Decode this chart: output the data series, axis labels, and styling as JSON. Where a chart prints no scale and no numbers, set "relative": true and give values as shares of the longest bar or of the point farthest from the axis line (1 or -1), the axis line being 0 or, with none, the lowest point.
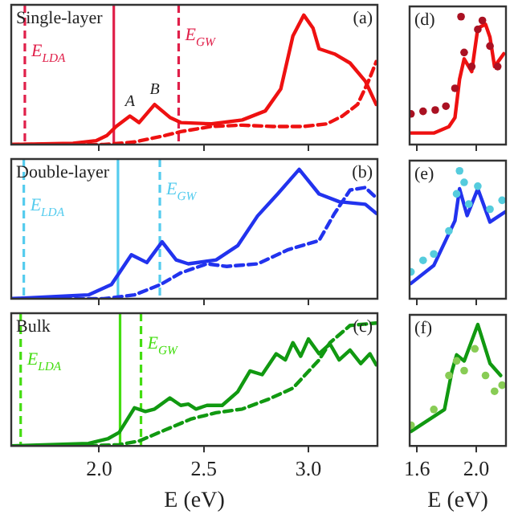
{
  "chart_data": [
    {
      "type": "line",
      "relative": true,
      "xlim": [
        1.58,
        3.33
      ],
      "xticks": [
        {
          "value": 2,
          "label": null
        },
        {
          "value": 2.5,
          "label": null
        },
        {
          "value": 3,
          "label": null
        }
      ],
      "tick_labels": false,
      "grid": false,
      "legend": false,
      "annotations": [
        "Single-layer",
        "(a)",
        {
          "text": "A",
          "x": 2.147,
          "y": 0.22
        },
        {
          "text": "B",
          "x": 2.265,
          "y": 0.31
        }
      ],
      "ref_lines": [
        {
          "axis": "x",
          "value": 1.645,
          "label": "E$_{LDA}$",
          "color": "#e0204a",
          "line_style": "dashed"
        },
        {
          "axis": "x",
          "value": 2.07,
          "label": null,
          "color": "#e0204a",
          "line_style": "solid"
        },
        {
          "axis": "x",
          "value": 2.38,
          "label": "E$_{GW}$",
          "color": "#e0204a",
          "line_style": "dashed"
        }
      ],
      "series": [
        {
          "color": "#ee1111",
          "line_style": "solid",
          "marker": "none",
          "x": [
            1.58,
            1.875,
            1.985,
            2.037,
            2.081,
            2.147,
            2.191,
            2.265,
            2.338,
            2.39,
            2.537,
            2.684,
            2.794,
            2.868,
            2.926,
            2.978,
            3.022,
            3.051,
            3.125,
            3.199,
            3.272,
            3.324
          ],
          "values": [
            0,
            0.01,
            0.03,
            0.07,
            0.14,
            0.22,
            0.17,
            0.31,
            0.21,
            0.17,
            0.16,
            0.19,
            0.26,
            0.43,
            0.84,
            1,
            0.9,
            0.74,
            0.7,
            0.63,
            0.49,
            0.31
          ]
        },
        {
          "color": "#ee1111",
          "line_style": "dashed",
          "marker": "none",
          "x": [
            1.58,
            2.022,
            2.169,
            2.316,
            2.39,
            2.537,
            2.684,
            2.831,
            2.978,
            3.088,
            3.162,
            3.235,
            3.287,
            3.324
          ],
          "values": [
            0,
            0,
            0.02,
            0.07,
            0.1,
            0.14,
            0.15,
            0.14,
            0.14,
            0.16,
            0.22,
            0.31,
            0.49,
            0.64
          ]
        }
      ]
    },
    {
      "type": "line",
      "relative": true,
      "xlim": [
        1.58,
        3.33
      ],
      "xticks": [
        {
          "value": 2,
          "label": null
        },
        {
          "value": 2.5,
          "label": null
        },
        {
          "value": 3,
          "label": null
        }
      ],
      "tick_labels": false,
      "grid": false,
      "legend": false,
      "annotations": [
        "Double-layer",
        "(b)"
      ],
      "ref_lines": [
        {
          "axis": "x",
          "value": 1.64,
          "label": "E$_{LDA}$",
          "color": "#55ccee",
          "line_style": "dashed"
        },
        {
          "axis": "x",
          "value": 2.09,
          "label": null,
          "color": "#55ccee",
          "line_style": "solid"
        },
        {
          "axis": "x",
          "value": 2.29,
          "label": "E$_{GW}$",
          "color": "#55ccee",
          "line_style": "dashed"
        }
      ],
      "series": [
        {
          "color": "#2233ee",
          "line_style": "solid",
          "marker": "none",
          "x": [
            1.58,
            1.949,
            2.059,
            2.154,
            2.228,
            2.301,
            2.368,
            2.426,
            2.559,
            2.662,
            2.757,
            2.853,
            2.956,
            3.051,
            3.147,
            3.272,
            3.324
          ],
          "values": [
            0,
            0.03,
            0.11,
            0.34,
            0.28,
            0.44,
            0.3,
            0.27,
            0.3,
            0.41,
            0.64,
            0.81,
            1,
            0.81,
            0.75,
            0.73,
            0.66
          ]
        },
        {
          "color": "#2233ee",
          "line_style": "dashed",
          "marker": "none",
          "x": [
            1.58,
            2.022,
            2.169,
            2.294,
            2.39,
            2.515,
            2.61,
            2.757,
            2.904,
            3.051,
            3.125,
            3.199,
            3.272,
            3.324
          ],
          "values": [
            0,
            0,
            0.03,
            0.11,
            0.2,
            0.27,
            0.25,
            0.27,
            0.38,
            0.45,
            0.66,
            0.84,
            0.86,
            0.78
          ]
        }
      ]
    },
    {
      "type": "line",
      "relative": true,
      "xlim": [
        1.58,
        3.33
      ],
      "xticks": [
        {
          "value": 2,
          "label": "2.0"
        },
        {
          "value": 2.5,
          "label": "2.5"
        },
        {
          "value": 3,
          "label": "3.0"
        }
      ],
      "tick_labels": "x",
      "grid": false,
      "legend": false,
      "xlabel": "E (eV)",
      "annotations": [
        "Bulk",
        "(c)"
      ],
      "ref_lines": [
        {
          "axis": "x",
          "value": 1.625,
          "label": "E$_{LDA}$",
          "color": "#44dd11",
          "line_style": "dashed"
        },
        {
          "axis": "x",
          "value": 2.1,
          "label": null,
          "color": "#44dd11",
          "line_style": "solid"
        },
        {
          "axis": "x",
          "value": 2.2,
          "label": "E$_{GW}$",
          "color": "#44dd11",
          "line_style": "dashed"
        }
      ],
      "series": [
        {
          "color": "#119911",
          "line_style": "solid",
          "marker": "none",
          "x": [
            1.58,
            1.949,
            2.044,
            2.096,
            2.169,
            2.221,
            2.265,
            2.338,
            2.39,
            2.426,
            2.463,
            2.515,
            2.588,
            2.662,
            2.721,
            2.779,
            2.846,
            2.89,
            2.926,
            2.963,
            3.0,
            3.051,
            3.103,
            3.147,
            3.199,
            3.25,
            3.294,
            3.324
          ],
          "values": [
            0,
            0.02,
            0.06,
            0.11,
            0.31,
            0.28,
            0.3,
            0.39,
            0.33,
            0.34,
            0.3,
            0.33,
            0.33,
            0.44,
            0.61,
            0.58,
            0.75,
            0.7,
            0.84,
            0.73,
            0.87,
            0.75,
            0.83,
            0.7,
            0.78,
            0.67,
            0.75,
            0.66
          ]
        },
        {
          "color": "#119911",
          "line_style": "dashed",
          "marker": "none",
          "x": [
            1.58,
            1.949,
            2.096,
            2.191,
            2.316,
            2.441,
            2.559,
            2.684,
            2.809,
            2.926,
            3.051,
            3.103,
            3.199,
            3.324
          ],
          "values": [
            0,
            0,
            0.01,
            0.04,
            0.13,
            0.22,
            0.27,
            0.3,
            0.38,
            0.47,
            0.7,
            0.84,
            0.98,
            1
          ]
        }
      ]
    },
    {
      "type": "line",
      "relative": true,
      "xlim": [
        1.55,
        2.2
      ],
      "xticks": [
        {
          "value": 1.6,
          "label": null
        },
        {
          "value": 2,
          "label": null
        }
      ],
      "tick_labels": false,
      "grid": false,
      "legend": false,
      "annotations": [
        "(d)"
      ],
      "series": [
        {
          "color": "#ee1111",
          "line_style": "solid",
          "marker": "none",
          "x": [
            1.559,
            1.713,
            1.815,
            1.856,
            1.887,
            1.918,
            1.969,
            2.01,
            2.062,
            2.092,
            2.123,
            2.185
          ],
          "values": [
            0.09,
            0.09,
            0.14,
            0.21,
            0.51,
            0.67,
            0.57,
            0.91,
            0.94,
            0.84,
            0.61,
            0.71
          ]
        },
        {
          "type": "scatter",
          "color": "#aa1122",
          "marker": "circle",
          "x": [
            1.559,
            1.641,
            1.723,
            1.795,
            1.856,
            1.897,
            1.918,
            1.969,
            2.01,
            2.041,
            2.092,
            2.144
          ],
          "values": [
            0.24,
            0.26,
            0.27,
            0.3,
            0.44,
            1,
            0.72,
            0.61,
            0.9,
            0.97,
            0.77,
            0.61
          ]
        }
      ]
    },
    {
      "type": "line",
      "relative": true,
      "xlim": [
        1.55,
        2.2
      ],
      "xticks": [
        {
          "value": 1.6,
          "label": null
        },
        {
          "value": 2,
          "label": null
        }
      ],
      "tick_labels": false,
      "grid": false,
      "legend": false,
      "annotations": [
        "(e)"
      ],
      "series": [
        {
          "color": "#2233ee",
          "line_style": "solid",
          "marker": "none",
          "x": [
            1.559,
            1.713,
            1.856,
            1.887,
            1.938,
            2.01,
            2.092,
            2.195
          ],
          "values": [
            0.12,
            0.26,
            0.61,
            0.86,
            0.65,
            0.86,
            0.6,
            0.68
          ]
        },
        {
          "type": "scatter",
          "color": "#55ccdd",
          "marker": "circle",
          "x": [
            1.559,
            1.641,
            1.713,
            1.815,
            1.867,
            1.887,
            1.918,
            1.949,
            2.01,
            2.092,
            2.174
          ],
          "values": [
            0.21,
            0.3,
            0.35,
            0.53,
            0.82,
            1,
            0.91,
            0.74,
            0.88,
            0.7,
            0.77
          ]
        }
      ]
    },
    {
      "type": "line",
      "relative": true,
      "xlim": [
        1.55,
        2.2
      ],
      "xticks": [
        {
          "value": 1.6,
          "label": "1.6"
        },
        {
          "value": 2,
          "label": "2.0"
        }
      ],
      "tick_labels": "x",
      "grid": false,
      "legend": false,
      "xlabel": "E (eV)",
      "annotations": [
        "(f)"
      ],
      "series": [
        {
          "color": "#119911",
          "line_style": "solid",
          "marker": "none",
          "x": [
            1.559,
            1.785,
            1.836,
            1.867,
            1.918,
            2.01,
            2.092,
            2.164
          ],
          "values": [
            0.12,
            0.3,
            0.62,
            0.75,
            0.7,
            1,
            0.68,
            0.58
          ]
        },
        {
          "type": "scatter",
          "color": "#88cc55",
          "marker": "circle",
          "x": [
            1.559,
            1.713,
            1.815,
            1.867,
            1.918,
            1.99,
            2.062,
            2.123,
            2.174
          ],
          "values": [
            0.17,
            0.3,
            0.58,
            0.7,
            0.62,
            0.8,
            0.58,
            0.45,
            0.5
          ]
        }
      ]
    }
  ]
}
